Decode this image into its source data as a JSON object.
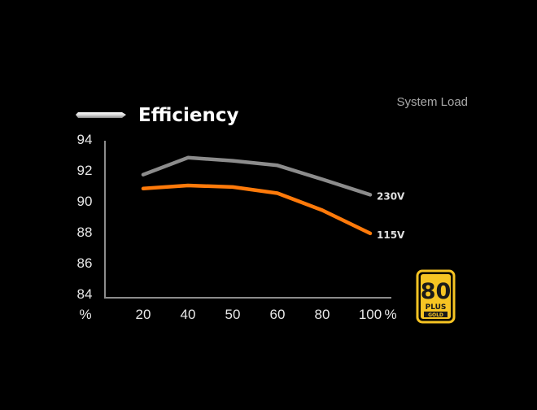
{
  "chart_data": {
    "type": "line",
    "title": "Efficiency",
    "subtitle": "System Load",
    "categories": [
      "20",
      "40",
      "50",
      "60",
      "80",
      "100"
    ],
    "y_ticks": [
      "94",
      "92",
      "90",
      "88",
      "86",
      "84"
    ],
    "y_unit": "%",
    "x_unit": "%",
    "ylim": [
      84,
      94
    ],
    "grid": false,
    "series": [
      {
        "name": "230V",
        "color": "#8c8c8c",
        "values": [
          91.7,
          92.8,
          92.6,
          92.3,
          91.4,
          90.4
        ]
      },
      {
        "name": "115V",
        "color": "#ff7a0a",
        "values": [
          90.8,
          91.0,
          90.9,
          90.5,
          89.4,
          87.9
        ]
      }
    ]
  },
  "badge": {
    "big_text": "80",
    "plus_text": "PLUS",
    "tier_text": "GOLD",
    "color": "#f6c423"
  }
}
